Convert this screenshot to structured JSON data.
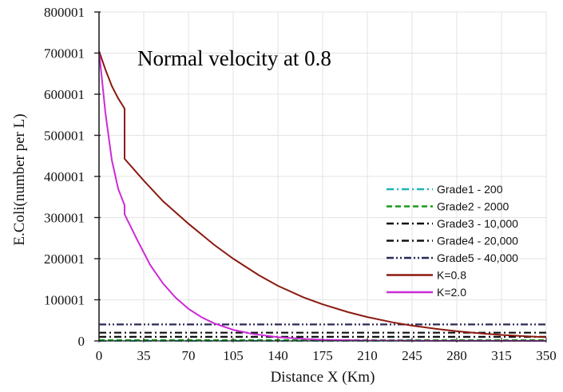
{
  "chart_data": {
    "type": "line",
    "title": "Normal velocity at 0.8",
    "xlabel": "Distance X (Km)",
    "ylabel": "E.Coli(number per L)",
    "xlim": [
      0,
      350
    ],
    "ylim": [
      0,
      800001
    ],
    "x_ticks": [
      "0",
      "35",
      "70",
      "105",
      "140",
      "175",
      "210",
      "245",
      "280",
      "315",
      "350"
    ],
    "y_ticks": [
      "0",
      "100001",
      "200001",
      "300001",
      "400001",
      "500001",
      "600001",
      "700001",
      "800001"
    ],
    "grid": true,
    "legend_position": "right",
    "series": [
      {
        "name": "Grade1 - 200",
        "style": "dash-dot",
        "color": "#1fb3b3",
        "x": [
          0,
          350
        ],
        "y": [
          200,
          200
        ]
      },
      {
        "name": "Grade2 - 2000",
        "style": "dash",
        "color": "#1a9a1a",
        "x": [
          0,
          350
        ],
        "y": [
          2000,
          2000
        ]
      },
      {
        "name": "Grade3 - 10,000",
        "style": "dash-dot",
        "color": "#111111",
        "x": [
          0,
          350
        ],
        "y": [
          10000,
          10000
        ]
      },
      {
        "name": "Grade4 - 20,000",
        "style": "dash-dot",
        "color": "#111111",
        "x": [
          0,
          350
        ],
        "y": [
          20000,
          20000
        ]
      },
      {
        "name": "Grade5 - 40,000",
        "style": "dash-dot-dot",
        "color": "#2a2a55",
        "x": [
          0,
          350
        ],
        "y": [
          40000,
          40000
        ]
      },
      {
        "name": "K=0.8",
        "style": "solid",
        "color": "#8b1a10",
        "x": [
          0,
          5,
          10,
          15,
          20,
          20,
          35,
          50,
          70,
          90,
          105,
          125,
          140,
          160,
          175,
          195,
          210,
          230,
          245,
          265,
          280,
          300,
          315,
          335,
          350
        ],
        "y": [
          705000,
          660000,
          620000,
          590000,
          565000,
          443000,
          390000,
          340000,
          285000,
          234000,
          200000,
          160000,
          134000,
          106000,
          89000,
          70000,
          58000,
          45000,
          37000,
          29000,
          23500,
          18000,
          14500,
          11000,
          9000
        ]
      },
      {
        "name": "K=2.0",
        "style": "solid",
        "color": "#cc2bd6",
        "x": [
          0,
          5,
          10,
          15,
          20,
          20,
          30,
          40,
          50,
          60,
          70,
          80,
          90,
          105,
          120,
          140,
          160,
          175,
          210,
          245,
          280,
          315,
          350
        ],
        "y": [
          705000,
          555000,
          440000,
          370000,
          330000,
          308000,
          245000,
          185000,
          140000,
          105000,
          78000,
          58000,
          43000,
          27000,
          17000,
          9000,
          5000,
          3000,
          1000,
          500,
          200,
          100,
          50
        ]
      }
    ]
  }
}
